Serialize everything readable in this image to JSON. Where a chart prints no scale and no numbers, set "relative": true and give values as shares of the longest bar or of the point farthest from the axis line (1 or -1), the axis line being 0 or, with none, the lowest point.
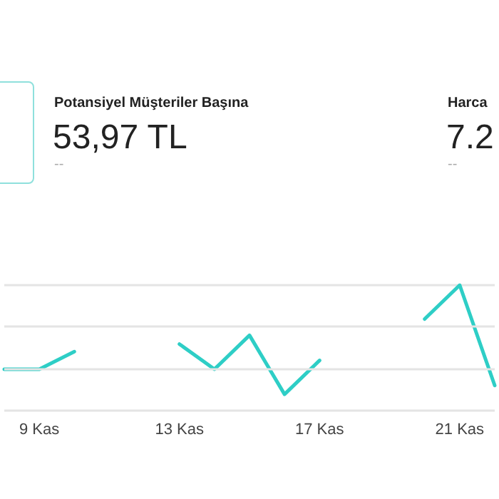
{
  "chart_data": {
    "type": "line",
    "title": "Potansiyel Müşteriler Başına",
    "subtitle": "53,97 TL",
    "annotations": [
      "--",
      "Harca",
      "7.2",
      "--"
    ],
    "categories": [
      null,
      "9 Kas",
      null,
      null,
      null,
      "13 Kas",
      null,
      null,
      null,
      "17 Kas",
      null,
      null,
      null,
      "21 Kas",
      null
    ],
    "series": [
      {
        "color": "#2ecec6",
        "values": [
          0.33,
          0.33,
          0.47,
          null,
          null,
          0.53,
          0.33,
          0.6,
          0.13,
          0.4,
          null,
          null,
          0.73,
          1,
          0.2
        ]
      }
    ],
    "ref_lines": [
      {
        "axis": "y",
        "value": 0.33,
        "color": "#e4e4e4"
      },
      {
        "axis": "y",
        "value": 0.67,
        "color": "#e4e4e4"
      }
    ],
    "relative": true,
    "grid": "y",
    "marker": "none",
    "line_style": "solid"
  }
}
